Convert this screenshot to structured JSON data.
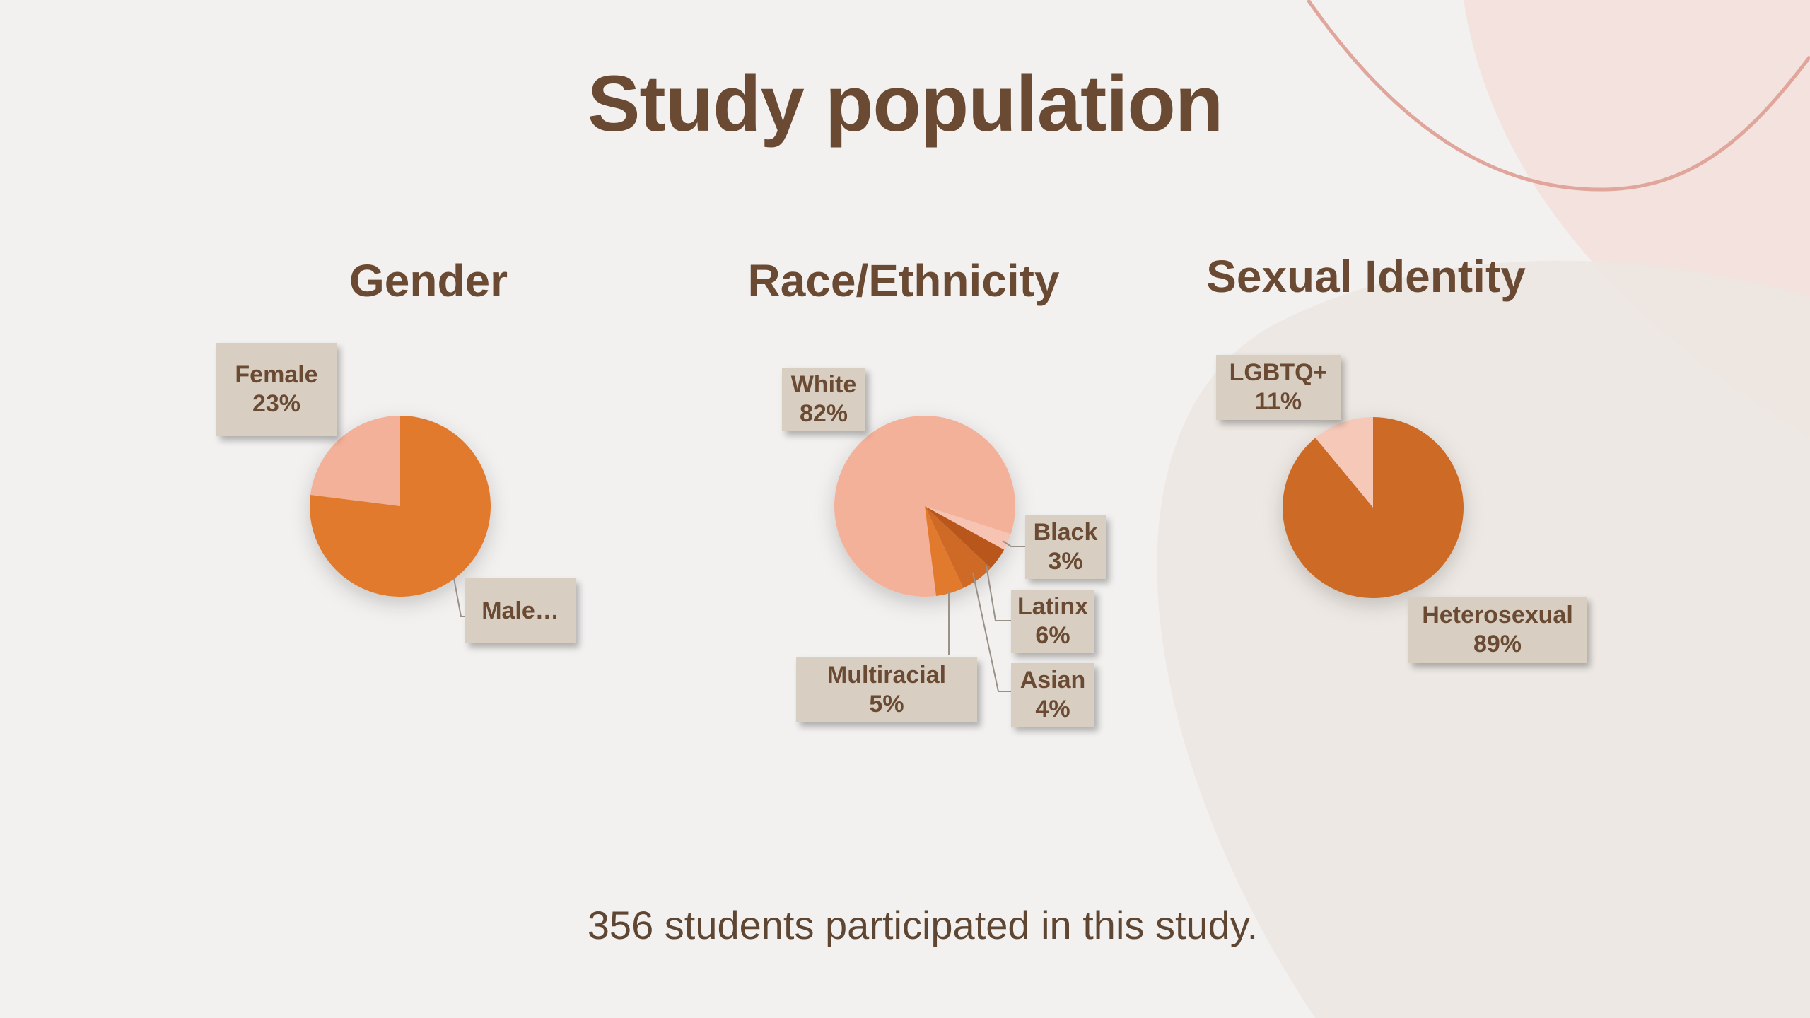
{
  "title": "Study population",
  "caption": "356 students participated in this study.",
  "colors": {
    "title": "#6a4a33",
    "label_bg": "#d8cfc2",
    "background": "#f2f1f0",
    "accent_curve": "#e0a59b"
  },
  "chart_data": [
    {
      "type": "pie",
      "title": "Gender",
      "slices": [
        {
          "name": "Female",
          "display": "Female\n23%",
          "value": 23,
          "color": "#f4b19a"
        },
        {
          "name": "Male",
          "display": "Male…",
          "value": 77,
          "color": "#e27a2e"
        }
      ]
    },
    {
      "type": "pie",
      "title": "Race/Ethnicity",
      "slices": [
        {
          "name": "White",
          "display": "White\n82%",
          "value": 82,
          "color": "#f4b19a"
        },
        {
          "name": "Black",
          "display": "Black\n3%",
          "value": 3,
          "color": "#f7c4b3"
        },
        {
          "name": "Asian",
          "display": "Asian\n4%",
          "value": 4,
          "color": "#b8561d"
        },
        {
          "name": "Latinx",
          "display": "Latinx\n6%",
          "value": 6,
          "color": "#cf6a28"
        },
        {
          "name": "Multiracial",
          "display": "Multiracial\n5%",
          "value": 5,
          "color": "#e27a2e"
        }
      ]
    },
    {
      "type": "pie",
      "title": "Sexual Identity",
      "slices": [
        {
          "name": "LGBTQ+",
          "display": "LGBTQ+\n11%",
          "value": 11,
          "color": "#f6c8b8"
        },
        {
          "name": "Heterosexual",
          "display": "Heterosexual\n89%",
          "value": 89,
          "color": "#cd6a28"
        }
      ]
    }
  ]
}
